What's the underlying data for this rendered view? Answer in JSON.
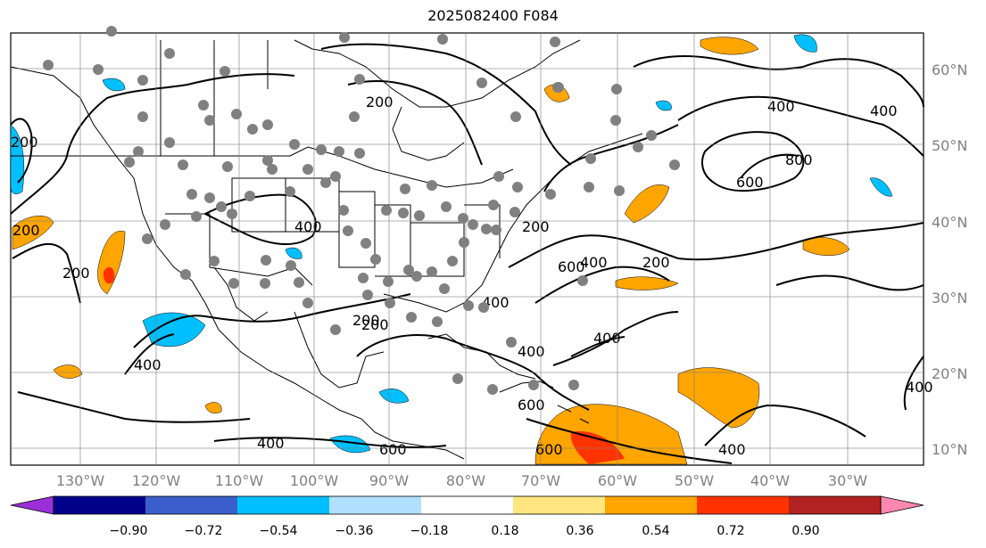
{
  "title": "2025082400 F084",
  "map": {
    "lon_ticks": [
      "130°W",
      "120°W",
      "110°W",
      "100°W",
      "90°W",
      "80°W",
      "70°W",
      "60°W",
      "50°W",
      "40°W",
      "30°W"
    ],
    "lat_ticks": [
      "60°N",
      "50°N",
      "40°N",
      "30°N",
      "20°N",
      "10°N"
    ],
    "contour_labels": [
      "200",
      "200",
      "200",
      "200",
      "200",
      "200",
      "200",
      "400",
      "400",
      "400",
      "400",
      "400",
      "400",
      "400",
      "400",
      "400",
      "400",
      "400",
      "600",
      "600",
      "600",
      "600",
      "600",
      "800",
      "200"
    ],
    "colors": {
      "land_outline": "#000000",
      "grid": "#808080",
      "station_dots": "#808080"
    },
    "icons": [
      "station-dot-icon"
    ]
  },
  "colorbar": {
    "tick_labels": [
      "−0.90",
      "−0.72",
      "−0.54",
      "−0.36",
      "−0.18",
      "0.18",
      "0.36",
      "0.54",
      "0.72",
      "0.90"
    ],
    "colors": [
      "#9b30d9",
      "#00008b",
      "#3a5fcd",
      "#00bfff",
      "#b0e0ff",
      "#ffffff",
      "#ffe680",
      "#ffa500",
      "#ff3300",
      "#b22222",
      "#ff88b0"
    ]
  }
}
